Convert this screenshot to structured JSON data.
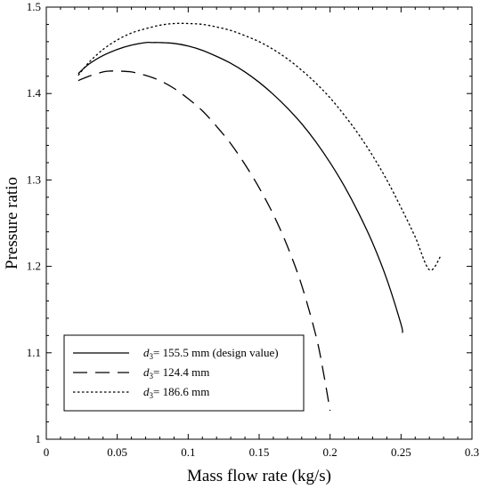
{
  "chart_data": {
    "type": "line",
    "xlabel": "Mass flow rate (kg/s)",
    "ylabel": "Pressure ratio",
    "xlim": [
      0,
      0.3
    ],
    "ylim": [
      1.0,
      1.5
    ],
    "xticks": [
      "0",
      "0.05",
      "0.1",
      "0.15",
      "0.2",
      "0.25",
      "0.3"
    ],
    "yticks": [
      "1",
      "1.1",
      "1.2",
      "1.3",
      "1.4",
      "1.5"
    ],
    "grid": false,
    "legend_position": "bottom-left",
    "series": [
      {
        "name": "d3= 155.5 mm (design value)",
        "legend_symbol": "d",
        "legend_subscript": "3",
        "legend_rest": "= 155.5 mm  (design value)",
        "style": "solid",
        "color": "#000000",
        "x": [
          0.0225,
          0.03,
          0.04,
          0.05,
          0.06,
          0.07,
          0.075,
          0.08,
          0.09,
          0.1,
          0.11,
          0.12,
          0.13,
          0.14,
          0.15,
          0.16,
          0.17,
          0.18,
          0.19,
          0.2,
          0.21,
          0.22,
          0.23,
          0.24,
          0.25,
          0.251
        ],
        "y": [
          1.423,
          1.434,
          1.444,
          1.451,
          1.456,
          1.459,
          1.459,
          1.459,
          1.458,
          1.455,
          1.45,
          1.443,
          1.435,
          1.425,
          1.413,
          1.399,
          1.383,
          1.365,
          1.344,
          1.32,
          1.293,
          1.262,
          1.227,
          1.185,
          1.133,
          1.123
        ]
      },
      {
        "name": "d3= 124.4 mm",
        "legend_symbol": "d",
        "legend_subscript": "3",
        "legend_rest": "= 124.4 mm",
        "style": "dashed",
        "color": "#000000",
        "x": [
          0.0225,
          0.03,
          0.04,
          0.045,
          0.05,
          0.06,
          0.07,
          0.08,
          0.09,
          0.1,
          0.11,
          0.12,
          0.13,
          0.14,
          0.15,
          0.16,
          0.17,
          0.18,
          0.19,
          0.195,
          0.2
        ],
        "y": [
          1.415,
          1.42,
          1.425,
          1.426,
          1.426,
          1.425,
          1.421,
          1.415,
          1.406,
          1.394,
          1.38,
          1.362,
          1.342,
          1.318,
          1.291,
          1.26,
          1.223,
          1.178,
          1.12,
          1.08,
          1.033
        ]
      },
      {
        "name": "d3= 186.6 mm",
        "legend_symbol": "d",
        "legend_subscript": "3",
        "legend_rest": "= 186.6 mm",
        "style": "dotted",
        "color": "#000000",
        "x": [
          0.0225,
          0.03,
          0.04,
          0.05,
          0.06,
          0.07,
          0.08,
          0.09,
          0.1,
          0.11,
          0.12,
          0.13,
          0.14,
          0.15,
          0.16,
          0.17,
          0.18,
          0.19,
          0.2,
          0.21,
          0.22,
          0.23,
          0.24,
          0.25,
          0.26,
          0.27,
          0.278
        ],
        "y": [
          1.421,
          1.436,
          1.451,
          1.462,
          1.47,
          1.475,
          1.479,
          1.481,
          1.481,
          1.48,
          1.477,
          1.473,
          1.467,
          1.46,
          1.451,
          1.44,
          1.427,
          1.412,
          1.395,
          1.375,
          1.353,
          1.328,
          1.3,
          1.268,
          1.234,
          1.196,
          1.212
        ]
      }
    ]
  }
}
